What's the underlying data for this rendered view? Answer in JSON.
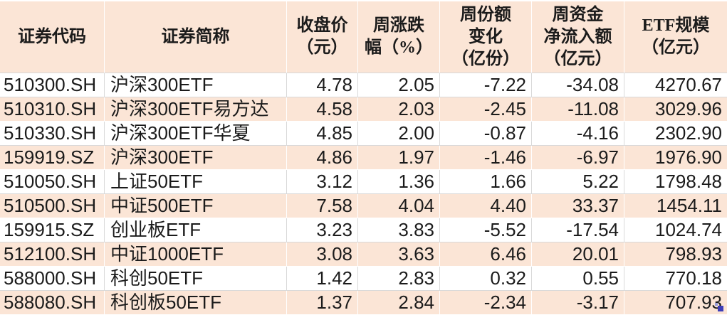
{
  "table": {
    "columns": [
      {
        "key": "code",
        "label": "证券代码",
        "align": "left"
      },
      {
        "key": "name",
        "label": "证券简称",
        "align": "left"
      },
      {
        "key": "close",
        "label": "收盘价\n（元）",
        "align": "right"
      },
      {
        "key": "weekly_chg",
        "label": "周涨跌\n幅（%）",
        "align": "right"
      },
      {
        "key": "share_chg",
        "label": "周份额\n变化\n（亿份）",
        "align": "right"
      },
      {
        "key": "net_inflow",
        "label": "周资金\n净流入额\n（亿元）",
        "align": "right"
      },
      {
        "key": "etf_scale",
        "label": "ETF规模\n（亿元）",
        "align": "right"
      }
    ],
    "rows": [
      [
        "510300.SH",
        "沪深300ETF",
        "4.78",
        "2.05",
        "-7.22",
        "-34.08",
        "4270.67"
      ],
      [
        "510310.SH",
        "沪深300ETF易方达",
        "4.58",
        "2.03",
        "-2.45",
        "-11.08",
        "3029.96"
      ],
      [
        "510330.SH",
        "沪深300ETF华夏",
        "4.85",
        "2.00",
        "-0.87",
        "-4.16",
        "2302.90"
      ],
      [
        "159919.SZ",
        "沪深300ETF",
        "4.86",
        "1.97",
        "-1.46",
        "-6.97",
        "1976.90"
      ],
      [
        "510050.SH",
        "上证50ETF",
        "3.12",
        "1.36",
        "1.66",
        "5.22",
        "1798.48"
      ],
      [
        "510500.SH",
        "中证500ETF",
        "7.58",
        "4.04",
        "4.40",
        "33.37",
        "1454.11"
      ],
      [
        "159915.SZ",
        "创业板ETF",
        "3.23",
        "3.83",
        "-5.52",
        "-17.54",
        "1024.74"
      ],
      [
        "512100.SH",
        "中证1000ETF",
        "3.08",
        "3.63",
        "6.46",
        "20.01",
        "798.93"
      ],
      [
        "588000.SH",
        "科创50ETF",
        "1.42",
        "2.83",
        "0.32",
        "0.55",
        "770.18"
      ],
      [
        "588080.SH",
        "科创板50ETF",
        "1.37",
        "2.84",
        "-2.34",
        "-3.17",
        "707.93"
      ]
    ]
  },
  "colors": {
    "header_bg": "#fbe5d6",
    "band_row_bg": "#fbe5d6",
    "gridline": "#d9d9d9",
    "text": "#1b1b1b",
    "selection_handle": "#3d3db8"
  }
}
